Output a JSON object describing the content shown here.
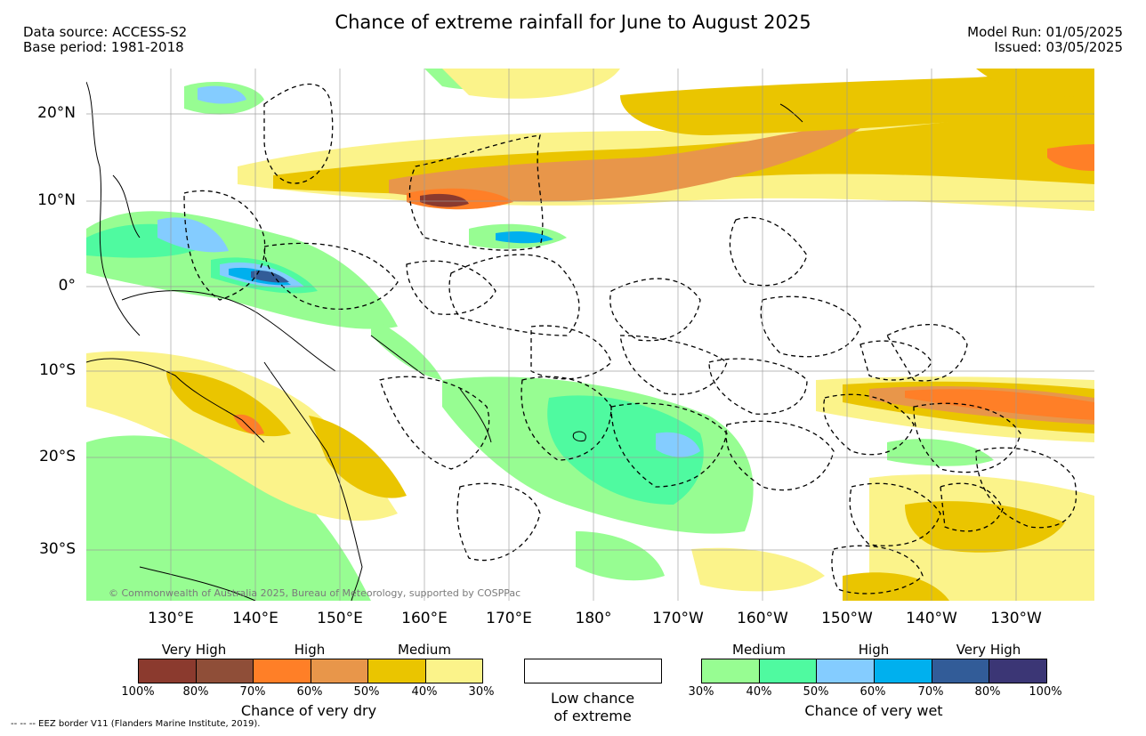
{
  "header": {
    "title": "Chance of extreme rainfall for June to August 2025",
    "data_source": "Data source: ACCESS-S2",
    "base_period": "Base period: 1981-2018",
    "model_run": "Model Run: 01/05/2025",
    "issued": "Issued: 03/05/2025"
  },
  "axes": {
    "lat_labels": [
      "20°N",
      "10°N",
      "0°",
      "10°S",
      "20°S",
      "30°S"
    ],
    "lon_labels": [
      "130°E",
      "140°E",
      "150°E",
      "160°E",
      "170°E",
      "180°",
      "170°W",
      "160°W",
      "150°W",
      "140°W",
      "130°W"
    ]
  },
  "copyright": "© Commonwealth of Australia 2025, Bureau of Meteorology, supported by COSPPac",
  "legend": {
    "dry": {
      "categories": [
        "Very High",
        "High",
        "Medium"
      ],
      "colors": [
        "#8b3a2e",
        "#8f4e38",
        "#ff7f27",
        "#e8964a",
        "#eac500",
        "#fbf38a"
      ],
      "ticks": [
        "100%",
        "80%",
        "70%",
        "60%",
        "50%",
        "40%",
        "30%"
      ],
      "label": "Chance of very dry"
    },
    "low": {
      "label_line1": "Low chance",
      "label_line2": "of extreme"
    },
    "wet": {
      "categories": [
        "Medium",
        "High",
        "Very High"
      ],
      "colors": [
        "#97fd92",
        "#4ffaa0",
        "#84ccff",
        "#00b0ee",
        "#325c98",
        "#3b3675"
      ],
      "ticks": [
        "30%",
        "40%",
        "50%",
        "60%",
        "70%",
        "80%",
        "100%"
      ],
      "label": "Chance of very wet"
    }
  },
  "footnote": "-- -- -- EEZ border V11 (Flanders Marine Institute, 2019)."
}
